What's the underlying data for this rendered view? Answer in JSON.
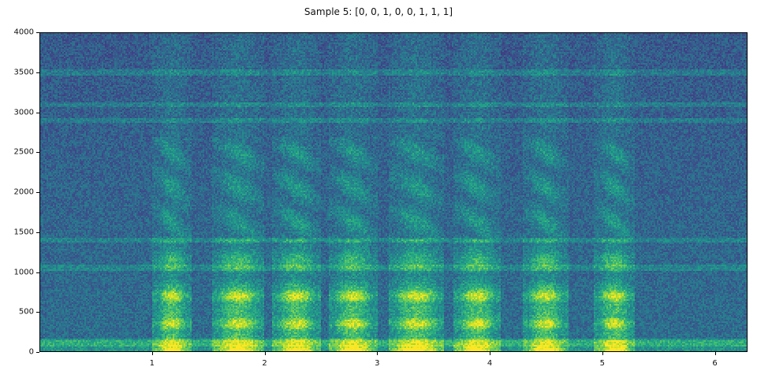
{
  "chart_data": {
    "type": "heatmap",
    "title": "Sample 5: [0, 0, 1, 0, 0, 1, 1, 1]",
    "xlabel": "",
    "ylabel": "",
    "xlim": [
      0,
      6.29
    ],
    "ylim": [
      0,
      4000
    ],
    "x_ticks": [
      "1",
      "2",
      "3",
      "4",
      "5",
      "6"
    ],
    "y_ticks": [
      "0",
      "500",
      "1000",
      "1500",
      "2000",
      "2500",
      "3000",
      "3500",
      "4000"
    ],
    "colormap": "viridis",
    "grid": false,
    "speech_segments_seconds": [
      [
        1.05,
        1.3
      ],
      [
        1.58,
        1.95
      ],
      [
        2.12,
        2.45
      ],
      [
        2.62,
        2.95
      ],
      [
        3.15,
        3.55
      ],
      [
        3.73,
        4.05
      ],
      [
        4.35,
        4.65
      ],
      [
        4.98,
        5.25
      ]
    ],
    "stationary_noise_bands_hz": [
      100,
      1050,
      1400,
      2900,
      3100,
      3500
    ]
  }
}
